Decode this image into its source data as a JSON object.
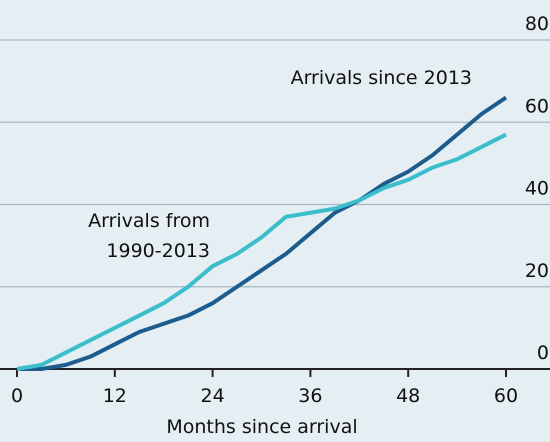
{
  "chart_data": {
    "type": "line",
    "x_label": "Months since arrival",
    "x": [
      0,
      3,
      6,
      9,
      12,
      15,
      18,
      21,
      24,
      27,
      30,
      33,
      36,
      39,
      42,
      45,
      48,
      51,
      54,
      57,
      60
    ],
    "series": [
      {
        "name": "Arrivals since 2013",
        "color": "#1d5c8d",
        "values": [
          0,
          0,
          1,
          3,
          6,
          9,
          11,
          13,
          16,
          20,
          24,
          28,
          33,
          38,
          41,
          45,
          48,
          52,
          57,
          62,
          66
        ]
      },
      {
        "name": "Arrivals from 1990-2013",
        "color": "#3bbdcc",
        "values": [
          0,
          1,
          4,
          7,
          10,
          13,
          16,
          20,
          25,
          28,
          32,
          37,
          38,
          39,
          41,
          44,
          46,
          49,
          51,
          54,
          57
        ]
      }
    ],
    "annotations": [
      {
        "series": 0,
        "lines": [
          "Arrivals since 2013"
        ]
      },
      {
        "series": 1,
        "lines": [
          "Arrivals from",
          "1990-2013"
        ]
      }
    ],
    "xlim": [
      0,
      60
    ],
    "xticks": [
      0,
      12,
      24,
      36,
      48,
      60
    ],
    "ylim": [
      0,
      80
    ],
    "yticks": [
      0,
      20,
      40,
      60,
      80
    ],
    "grid": true
  }
}
